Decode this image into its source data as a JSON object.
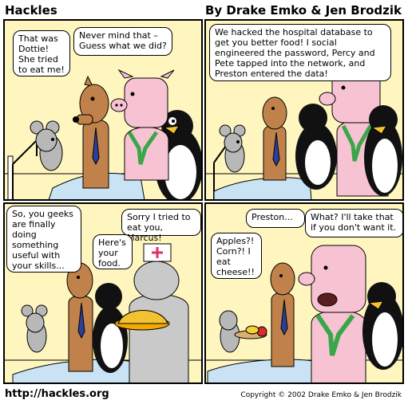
{
  "header": {
    "title": "Hackles",
    "credits": "By Drake Emko & Jen Brodzik"
  },
  "footer": {
    "url": "http://hackles.org",
    "copyright": "Copyright © 2002 Drake Emko & Jen Brodzik"
  },
  "panels": [
    {
      "bubbles": [
        "That was Dottie! She tried to eat me!",
        "Never mind that – Guess what we did?"
      ]
    },
    {
      "bubbles": [
        "We hacked the hospital database to get you better food! I social engineered the password, Percy and Pete tapped into the network, and Preston entered the data!"
      ]
    },
    {
      "bubbles": [
        "So, you geeks are finally doing something useful with your skills...",
        "Sorry I tried to eat you, Marcus!",
        "Here's your food."
      ]
    },
    {
      "bubbles": [
        "Preston...",
        "What? I'll take that if you don't want it.",
        "Apples?! Corn?! I eat cheese!!"
      ]
    }
  ],
  "colors": {
    "panel_bg": "#fff6bf",
    "dog": "#c0824a",
    "pig": "#f7c3d3",
    "mouse": "#b8b8b8",
    "cat": "#c9c9c9",
    "blanket": "#c9e3f4",
    "tie": "#2b3f99",
    "scarf": "#3aa64a"
  }
}
